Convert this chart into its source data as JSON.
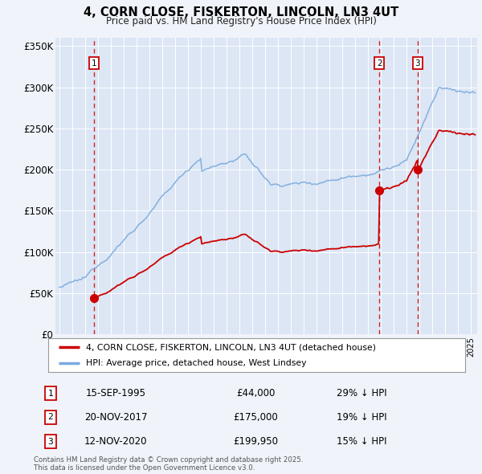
{
  "title": "4, CORN CLOSE, FISKERTON, LINCOLN, LN3 4UT",
  "subtitle": "Price paid vs. HM Land Registry's House Price Index (HPI)",
  "bg_color": "#f0f4fa",
  "plot_bg_color": "#dce6f5",
  "plot_bg_hatch_color": "#c8d8ee",
  "grid_color": "#ffffff",
  "red_color": "#cc0000",
  "blue_color": "#7aaadd",
  "ylim": [
    0,
    360000
  ],
  "yticks": [
    0,
    50000,
    100000,
    150000,
    200000,
    250000,
    300000,
    350000
  ],
  "ytick_labels": [
    "£0",
    "£50K",
    "£100K",
    "£150K",
    "£200K",
    "£250K",
    "£300K",
    "£350K"
  ],
  "sale_times": [
    1995.71,
    2017.89,
    2020.87
  ],
  "sale_prices": [
    44000,
    175000,
    199950
  ],
  "sale_labels": [
    "1",
    "2",
    "3"
  ],
  "sale_info": [
    {
      "num": "1",
      "date": "15-SEP-1995",
      "price": "£44,000",
      "hpi": "29% ↓ HPI"
    },
    {
      "num": "2",
      "date": "20-NOV-2017",
      "price": "£175,000",
      "hpi": "19% ↓ HPI"
    },
    {
      "num": "3",
      "date": "12-NOV-2020",
      "price": "£199,950",
      "hpi": "15% ↓ HPI"
    }
  ],
  "legend_line1": "4, CORN CLOSE, FISKERTON, LINCOLN, LN3 4UT (detached house)",
  "legend_line2": "HPI: Average price, detached house, West Lindsey",
  "footer": "Contains HM Land Registry data © Crown copyright and database right 2025.\nThis data is licensed under the Open Government Licence v3.0.",
  "vline_color": "#cc0000",
  "xlim": [
    1992.7,
    2025.5
  ],
  "year_start": 1993,
  "year_end": 2025
}
